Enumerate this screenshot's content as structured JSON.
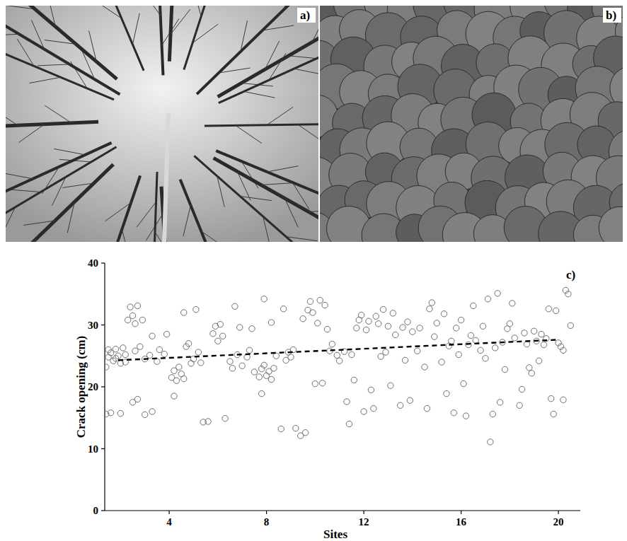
{
  "panel_labels": [
    "a)",
    "b)",
    "c)"
  ],
  "chart_data": {
    "type": "scatter",
    "x_label": "Sites",
    "y_label": "Crack opening (cm)",
    "xlim": [
      1.35,
      20.9
    ],
    "ylim": [
      0,
      40
    ],
    "xticks": [
      4,
      8,
      12,
      16,
      20
    ],
    "yticks": [
      0,
      10,
      20,
      30,
      40
    ],
    "grid": false,
    "series": [
      {
        "type": "scatter",
        "marker": "circle",
        "color": "#6e6e6e",
        "x": [
          1.4,
          1.5,
          1.5,
          1.6,
          1.7,
          1.8,
          1.9,
          2.0,
          2.1,
          2.2,
          1.4,
          1.6,
          2.0,
          1.8,
          2.2,
          2.3,
          2.4,
          2.5,
          2.6,
          2.7,
          2.5,
          2.7,
          2.6,
          2.8,
          2.9,
          3.0,
          3.2,
          3.3,
          3.5,
          3.6,
          3.3,
          3.0,
          3.8,
          3.9,
          4.1,
          4.2,
          4.3,
          4.4,
          4.5,
          4.6,
          4.7,
          4.8,
          4.2,
          4.6,
          4.9,
          5.0,
          5.2,
          5.3,
          5.4,
          5.6,
          5.1,
          5.8,
          5.9,
          6.0,
          6.1,
          6.2,
          6.3,
          6.5,
          6.6,
          6.7,
          6.8,
          6.9,
          7.0,
          7.2,
          7.3,
          7.4,
          7.5,
          7.7,
          7.8,
          7.9,
          8.0,
          8.1,
          8.2,
          8.3,
          7.9,
          8.2,
          7.8,
          8.4,
          8.6,
          8.7,
          8.8,
          8.9,
          9.0,
          9.1,
          9.2,
          9.4,
          9.6,
          9.5,
          9.7,
          9.8,
          9.9,
          10.0,
          10.1,
          10.2,
          10.3,
          10.4,
          10.5,
          10.6,
          10.7,
          10.9,
          11.0,
          11.2,
          11.3,
          11.4,
          11.5,
          11.6,
          11.7,
          11.8,
          11.9,
          12.0,
          12.1,
          12.2,
          12.3,
          12.4,
          12.5,
          12.6,
          12.7,
          12.8,
          12.9,
          13.0,
          13.1,
          13.2,
          13.3,
          13.5,
          13.6,
          13.7,
          13.8,
          13.9,
          14.0,
          14.2,
          14.3,
          14.5,
          14.6,
          14.7,
          14.8,
          14.9,
          15.0,
          15.2,
          15.3,
          15.4,
          15.5,
          15.6,
          15.7,
          15.8,
          15.9,
          16.0,
          16.1,
          16.2,
          16.3,
          16.4,
          16.5,
          16.6,
          16.8,
          16.9,
          17.0,
          17.1,
          17.2,
          17.3,
          17.4,
          17.5,
          17.6,
          17.7,
          17.8,
          17.9,
          18.0,
          18.1,
          18.2,
          18.4,
          18.5,
          18.6,
          18.7,
          18.8,
          18.9,
          19.0,
          19.1,
          19.2,
          19.3,
          19.5,
          19.6,
          19.7,
          19.8,
          19.9,
          20.0,
          20.1,
          20.2,
          20.3,
          20.4,
          20.5,
          20.2,
          19.4
        ],
        "values": [
          23.2,
          24.8,
          26.0,
          25.5,
          24.2,
          26.1,
          25.0,
          23.8,
          26.3,
          25.2,
          15.6,
          15.8,
          15.7,
          24.6,
          24.0,
          30.8,
          32.9,
          31.5,
          30.2,
          33.1,
          17.5,
          18.0,
          25.8,
          26.5,
          30.8,
          24.5,
          25.1,
          28.2,
          24.1,
          26.0,
          16.0,
          15.5,
          25.3,
          28.5,
          21.5,
          22.6,
          21.0,
          23.2,
          22.1,
          21.3,
          26.5,
          27.0,
          18.5,
          32.0,
          23.8,
          24.5,
          25.6,
          23.9,
          14.3,
          14.4,
          32.5,
          28.6,
          29.8,
          27.4,
          30.1,
          28.2,
          14.9,
          24.1,
          23.0,
          33.0,
          25.2,
          29.6,
          23.4,
          24.8,
          25.9,
          29.4,
          22.4,
          21.6,
          22.9,
          23.5,
          21.8,
          22.5,
          21.2,
          23.0,
          34.2,
          30.4,
          18.9,
          25.0,
          13.2,
          32.6,
          24.3,
          25.6,
          24.8,
          26.0,
          13.3,
          12.1,
          12.6,
          31.0,
          32.4,
          33.8,
          32.0,
          20.5,
          30.3,
          34.0,
          20.6,
          33.2,
          29.3,
          25.8,
          26.9,
          25.1,
          24.2,
          25.7,
          17.6,
          14.0,
          25.2,
          21.1,
          29.5,
          30.8,
          31.6,
          16.0,
          29.2,
          30.6,
          19.5,
          16.5,
          31.4,
          30.2,
          24.9,
          32.5,
          25.6,
          29.8,
          20.2,
          31.9,
          28.4,
          17.0,
          29.6,
          24.3,
          30.5,
          17.8,
          28.9,
          25.8,
          29.5,
          23.2,
          16.5,
          32.6,
          33.6,
          28.1,
          30.3,
          24.0,
          31.8,
          18.9,
          26.6,
          27.4,
          15.8,
          29.5,
          25.2,
          30.8,
          20.5,
          15.3,
          26.8,
          28.3,
          33.1,
          27.5,
          25.9,
          29.8,
          24.6,
          34.2,
          11.1,
          15.6,
          26.3,
          35.1,
          17.5,
          27.2,
          22.8,
          29.4,
          30.2,
          33.5,
          27.9,
          17.0,
          19.6,
          28.7,
          26.9,
          23.1,
          22.2,
          29.0,
          27.4,
          24.2,
          28.5,
          27.8,
          32.6,
          18.1,
          15.6,
          32.3,
          27.1,
          26.5,
          17.9,
          35.6,
          35.0,
          29.9,
          25.9,
          26.8
        ]
      },
      {
        "type": "line",
        "line_style": "dashed",
        "color": "#000000",
        "x": [
          1.9,
          19.9
        ],
        "values": [
          24.3,
          27.6
        ]
      }
    ]
  }
}
